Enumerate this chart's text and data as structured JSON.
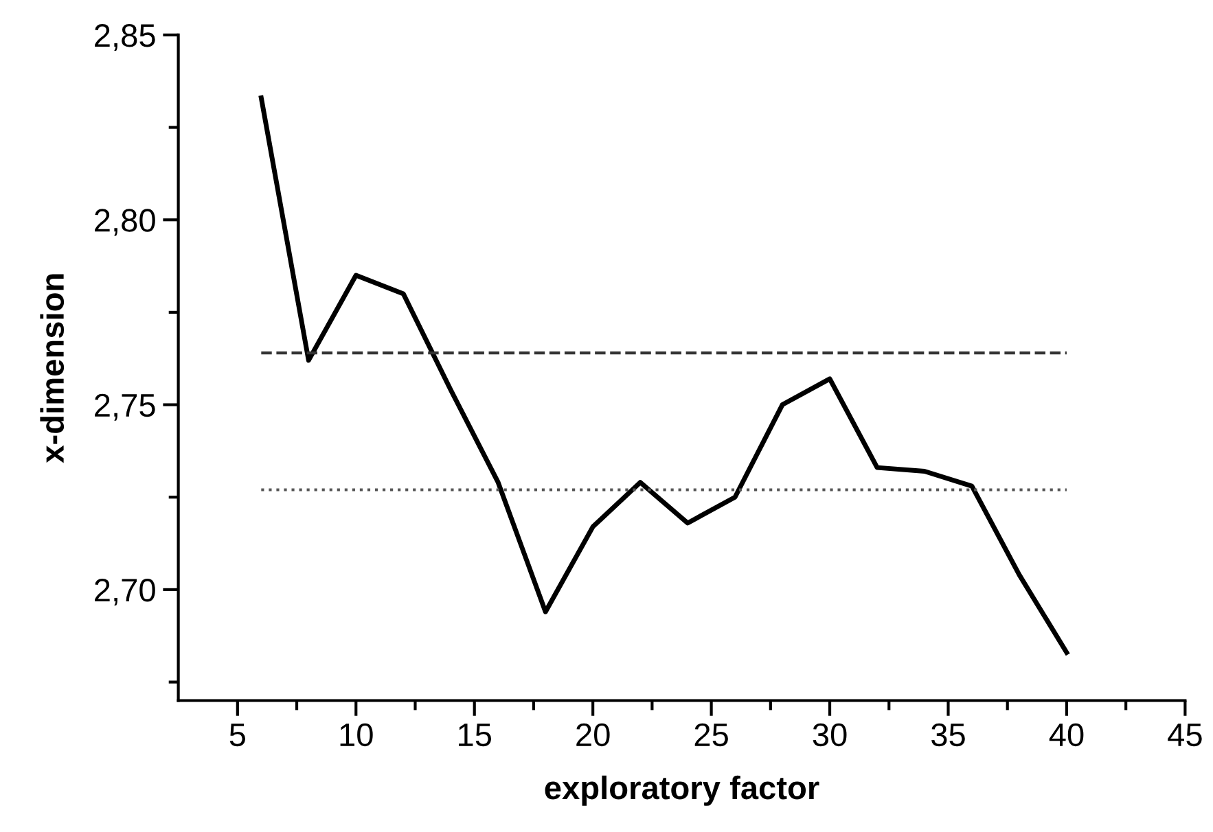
{
  "chart_data": {
    "type": "line",
    "xlabel": "exploratory factor",
    "ylabel": "x-dimension",
    "x": [
      6,
      8,
      10,
      12,
      14,
      16,
      18,
      20,
      22,
      24,
      26,
      28,
      30,
      32,
      34,
      36,
      38,
      40
    ],
    "series": [
      {
        "color": "#000000",
        "values": [
          2.833,
          2.762,
          2.785,
          2.78,
          2.754,
          2.729,
          2.694,
          2.717,
          2.729,
          2.718,
          2.725,
          2.75,
          2.757,
          2.733,
          2.732,
          2.728,
          2.704,
          2.683
        ]
      }
    ],
    "xlim": [
      2.5,
      45
    ],
    "ylim": [
      2.67,
      2.85
    ],
    "xticks": [
      5,
      {
        "value": 7.5,
        "label": null
      },
      10,
      {
        "value": 12.5,
        "label": null
      },
      15,
      {
        "value": 17.5,
        "label": null
      },
      20,
      {
        "value": 22.5,
        "label": null
      },
      25,
      {
        "value": 27.5,
        "label": null
      },
      30,
      {
        "value": 32.5,
        "label": null
      },
      35,
      {
        "value": 37.5,
        "label": null
      },
      40,
      {
        "value": 42.5,
        "label": null
      },
      45
    ],
    "yticks": [
      {
        "value": 2.675,
        "label": null
      },
      {
        "value": 2.7,
        "label": "2,70"
      },
      {
        "value": 2.725,
        "label": null
      },
      {
        "value": 2.75,
        "label": "2,75"
      },
      {
        "value": 2.775,
        "label": null
      },
      {
        "value": 2.8,
        "label": "2,80"
      },
      {
        "value": 2.825,
        "label": null
      },
      {
        "value": 2.85,
        "label": "2,85"
      }
    ],
    "ref_lines": [
      {
        "axis": "y",
        "value": 2.764,
        "line_style": "dashed",
        "color": "#333333"
      },
      {
        "axis": "y",
        "value": 2.727,
        "line_style": "dotted",
        "color": "#555555"
      }
    ],
    "grid": false,
    "legend": false,
    "marker": "none",
    "line_style": "solid"
  }
}
